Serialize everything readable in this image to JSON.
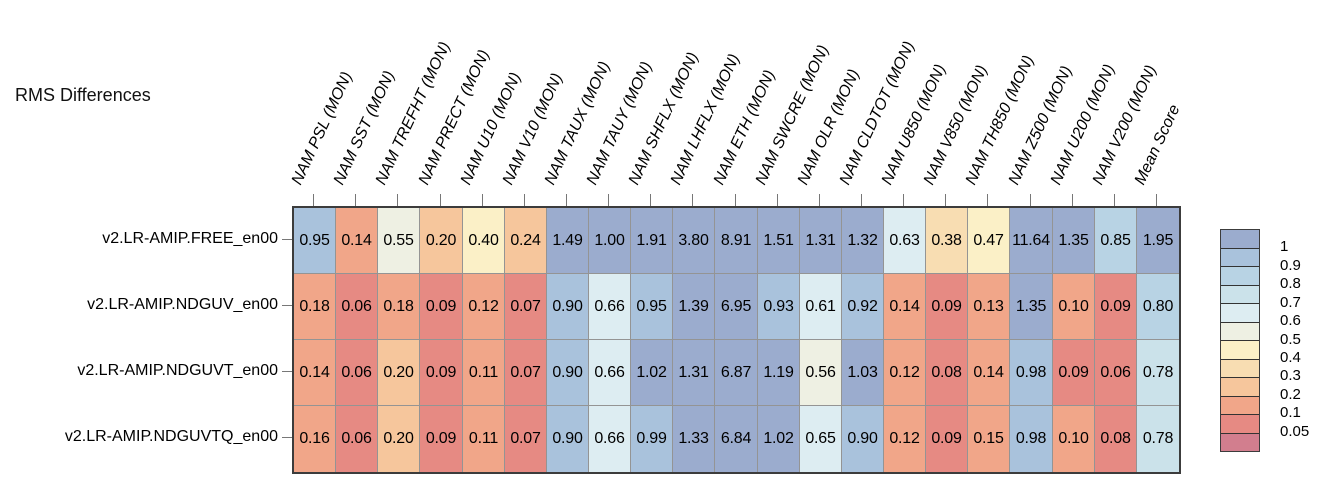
{
  "title": "RMS Differences",
  "chart_data": {
    "type": "heatmap",
    "title": "RMS Differences",
    "columns": [
      "NAM PSL (MON)",
      "NAM SST (MON)",
      "NAM TREFHT (MON)",
      "NAM PRECT (MON)",
      "NAM U10 (MON)",
      "NAM V10 (MON)",
      "NAM TAUX (MON)",
      "NAM TAUY (MON)",
      "NAM SHFLX (MON)",
      "NAM LHFLX (MON)",
      "NAM ETH (MON)",
      "NAM SWCRE (MON)",
      "NAM OLR (MON)",
      "NAM CLDTOT (MON)",
      "NAM U850 (MON)",
      "NAM V850 (MON)",
      "NAM TH850 (MON)",
      "NAM Z500 (MON)",
      "NAM U200 (MON)",
      "NAM V200 (MON)",
      "Mean Score"
    ],
    "rows": [
      "v2.LR-AMIP.FREE_en00",
      "v2.LR-AMIP.NDGUV_en00",
      "v2.LR-AMIP.NDGUVT_en00",
      "v2.LR-AMIP.NDGUVTQ_en00"
    ],
    "values": [
      [
        0.95,
        0.14,
        0.55,
        0.2,
        0.4,
        0.24,
        1.49,
        1.0,
        1.91,
        3.8,
        8.91,
        1.51,
        1.31,
        1.32,
        0.63,
        0.38,
        0.47,
        11.64,
        1.35,
        0.85,
        1.95
      ],
      [
        0.18,
        0.06,
        0.18,
        0.09,
        0.12,
        0.07,
        0.9,
        0.66,
        0.95,
        1.39,
        6.95,
        0.93,
        0.61,
        0.92,
        0.14,
        0.09,
        0.13,
        1.35,
        0.1,
        0.09,
        0.8
      ],
      [
        0.14,
        0.06,
        0.2,
        0.09,
        0.11,
        0.07,
        0.9,
        0.66,
        1.02,
        1.31,
        6.87,
        1.19,
        0.56,
        1.03,
        0.12,
        0.08,
        0.14,
        0.98,
        0.09,
        0.06,
        0.78
      ],
      [
        0.16,
        0.06,
        0.2,
        0.09,
        0.11,
        0.07,
        0.9,
        0.66,
        0.99,
        1.33,
        6.84,
        1.02,
        0.65,
        0.9,
        0.12,
        0.09,
        0.15,
        0.98,
        0.1,
        0.08,
        0.78
      ]
    ],
    "value_decimals": 2,
    "colorbar": {
      "legend_position": "right",
      "tick_labels": [
        "1",
        "0.9",
        "0.8",
        "0.7",
        "0.6",
        "0.5",
        "0.4",
        "0.3",
        "0.2",
        "0.1",
        "0.05"
      ],
      "bin_thresholds_top_to_bottom": [
        1,
        0.9,
        0.8,
        0.7,
        0.6,
        0.5,
        0.4,
        0.3,
        0.2,
        0.1,
        0.05
      ],
      "colors_top_to_bottom": [
        "#9bacce",
        "#a9c2dc",
        "#b8d3e4",
        "#cbe2ea",
        "#ddedf2",
        "#eef0e3",
        "#fbf0c7",
        "#f8ddb2",
        "#f6c69c",
        "#f1a689",
        "#e68a83",
        "#d27e8e"
      ]
    },
    "layout_hints": {
      "x_tick_label_rotation_deg": -65,
      "x_tick_labels_italic": true,
      "grid_lines": true,
      "row_labels_position": "left",
      "column_labels_position": "top"
    }
  }
}
